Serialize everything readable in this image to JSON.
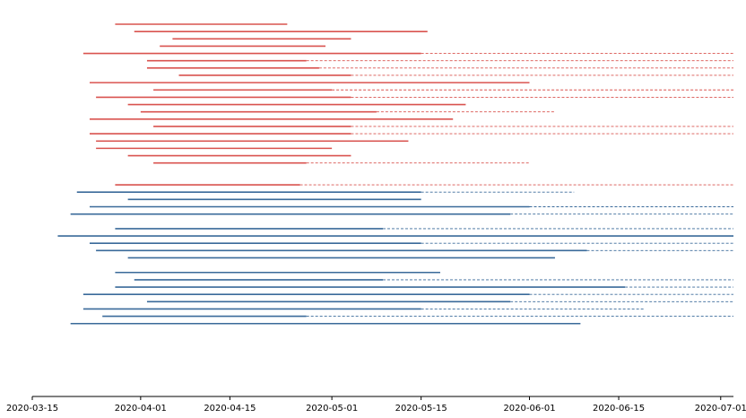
{
  "chart_data": {
    "type": "timeline",
    "x_axis": {
      "type": "date",
      "min": "2020-03-15",
      "max": "2020-07-03",
      "ticks": [
        "2020-03-15",
        "2020-04-01",
        "2020-04-15",
        "2020-05-01",
        "2020-05-15",
        "2020-06-01",
        "2020-06-15",
        "2020-07-01"
      ]
    },
    "grid": false,
    "legend": "none",
    "series": [
      {
        "color": "#d9534f",
        "rows": [
          {
            "start": "2020-03-28",
            "solid_end": "2020-04-24",
            "dashed_end": null
          },
          {
            "start": "2020-03-31",
            "solid_end": "2020-05-16",
            "dashed_end": null
          },
          {
            "start": "2020-04-06",
            "solid_end": "2020-05-04",
            "dashed_end": null
          },
          {
            "start": "2020-04-04",
            "solid_end": "2020-04-30",
            "dashed_end": null
          },
          {
            "start": "2020-03-23",
            "solid_end": "2020-05-15",
            "dashed_end": "2020-07-03"
          },
          {
            "start": "2020-04-02",
            "solid_end": "2020-04-27",
            "dashed_end": "2020-07-03"
          },
          {
            "start": "2020-04-02",
            "solid_end": "2020-04-29",
            "dashed_end": "2020-07-03"
          },
          {
            "start": "2020-04-07",
            "solid_end": "2020-05-04",
            "dashed_end": "2020-07-03"
          },
          {
            "start": "2020-03-24",
            "solid_end": "2020-06-01",
            "dashed_end": null
          },
          {
            "start": "2020-04-03",
            "solid_end": "2020-05-01",
            "dashed_end": "2020-07-03"
          },
          {
            "start": "2020-03-25",
            "solid_end": "2020-05-04",
            "dashed_end": "2020-07-03"
          },
          {
            "start": "2020-03-30",
            "solid_end": "2020-05-22",
            "dashed_end": null
          },
          {
            "start": "2020-04-01",
            "solid_end": "2020-05-08",
            "dashed_end": "2020-06-05"
          },
          {
            "start": "2020-03-24",
            "solid_end": "2020-05-20",
            "dashed_end": null
          },
          {
            "start": "2020-04-03",
            "solid_end": "2020-05-04",
            "dashed_end": "2020-07-03"
          },
          {
            "start": "2020-03-24",
            "solid_end": "2020-05-04",
            "dashed_end": "2020-07-03"
          },
          {
            "start": "2020-03-25",
            "solid_end": "2020-05-13",
            "dashed_end": null
          },
          {
            "start": "2020-03-25",
            "solid_end": "2020-05-01",
            "dashed_end": null
          },
          {
            "start": "2020-03-30",
            "solid_end": "2020-05-04",
            "dashed_end": null
          },
          {
            "start": "2020-04-03",
            "solid_end": "2020-04-27",
            "dashed_end": "2020-06-01"
          },
          null,
          null,
          {
            "start": "2020-03-28",
            "solid_end": "2020-04-26",
            "dashed_end": "2020-07-03"
          }
        ]
      },
      {
        "color": "#3a6a9a",
        "rows": [
          {
            "start": "2020-03-22",
            "solid_end": "2020-05-15",
            "dashed_end": "2020-06-08"
          },
          {
            "start": "2020-03-30",
            "solid_end": "2020-05-15",
            "dashed_end": null
          },
          {
            "start": "2020-03-24",
            "solid_end": "2020-06-01",
            "dashed_end": "2020-07-03"
          },
          {
            "start": "2020-03-21",
            "solid_end": "2020-05-29",
            "dashed_end": "2020-07-03"
          },
          null,
          {
            "start": "2020-03-28",
            "solid_end": "2020-05-09",
            "dashed_end": "2020-07-03"
          },
          {
            "start": "2020-03-19",
            "solid_end": "2020-07-03",
            "dashed_end": null
          },
          {
            "start": "2020-03-24",
            "solid_end": "2020-05-15",
            "dashed_end": "2020-07-03"
          },
          {
            "start": "2020-03-25",
            "solid_end": "2020-06-10",
            "dashed_end": "2020-07-03"
          },
          {
            "start": "2020-03-30",
            "solid_end": "2020-06-05",
            "dashed_end": null
          },
          null,
          {
            "start": "2020-03-28",
            "solid_end": "2020-05-18",
            "dashed_end": null
          },
          {
            "start": "2020-03-31",
            "solid_end": "2020-05-09",
            "dashed_end": "2020-07-03"
          },
          {
            "start": "2020-03-28",
            "solid_end": "2020-06-16",
            "dashed_end": "2020-07-03"
          },
          {
            "start": "2020-03-23",
            "solid_end": "2020-06-01",
            "dashed_end": "2020-07-03"
          },
          {
            "start": "2020-04-02",
            "solid_end": "2020-05-29",
            "dashed_end": "2020-07-03"
          },
          {
            "start": "2020-03-23",
            "solid_end": "2020-05-15",
            "dashed_end": "2020-06-19"
          },
          {
            "start": "2020-03-26",
            "solid_end": "2020-04-27",
            "dashed_end": "2020-07-03"
          },
          {
            "start": "2020-03-21",
            "solid_end": "2020-06-09",
            "dashed_end": null
          }
        ]
      }
    ]
  }
}
